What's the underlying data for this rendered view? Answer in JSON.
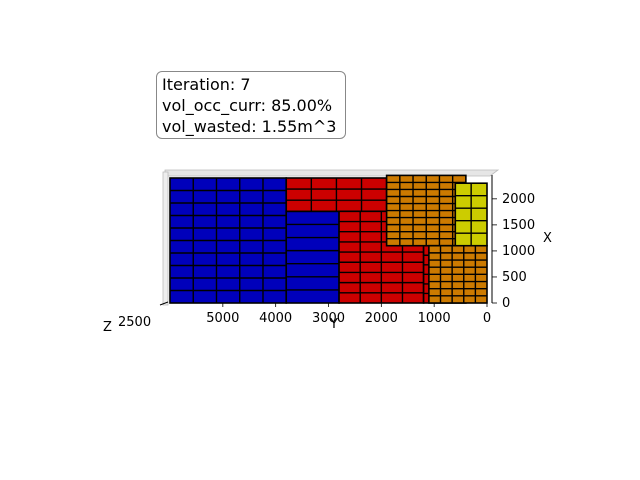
{
  "info": {
    "iteration": "Iteration: 7",
    "vol_occ": "vol_occ_curr: 85.00%",
    "vol_wasted": "vol_wasted: 1.55m^3"
  },
  "chart_data": {
    "type": "3d-box-packing",
    "axes": {
      "y": {
        "label": "Y",
        "ticks": [
          "5000",
          "4000",
          "3000",
          "2000",
          "1000",
          "0"
        ],
        "range": [
          0,
          6000
        ]
      },
      "x": {
        "label": "X",
        "ticks": [
          "0",
          "500",
          "1000",
          "1500",
          "2000"
        ],
        "range": [
          0,
          2400
        ]
      },
      "z": {
        "label": "Z",
        "tick_overlap_text": "2500"
      }
    },
    "blocks": [
      {
        "name": "blue-block",
        "color": "#0000bb",
        "y_range": [
          3800,
          6000
        ],
        "x_range": [
          0,
          2400
        ],
        "cols": 5,
        "rows": 10
      },
      {
        "name": "blue-block-lower",
        "color": "#0000bb",
        "y_range": [
          2800,
          3800
        ],
        "x_range": [
          0,
          1760
        ],
        "cols": 1,
        "rows": 7
      },
      {
        "name": "red-block-top",
        "color": "#cc0000",
        "y_range": [
          1900,
          3800
        ],
        "x_range": [
          1760,
          2400
        ],
        "cols": 4,
        "rows": 3
      },
      {
        "name": "red-block",
        "color": "#cc0000",
        "y_range": [
          1200,
          2800
        ],
        "x_range": [
          0,
          1760
        ],
        "cols": 4,
        "rows": 9
      },
      {
        "name": "red-block-right",
        "color": "#cc0000",
        "y_range": [
          400,
          1200
        ],
        "x_range": [
          0,
          1100
        ],
        "cols": 1,
        "rows": 6
      },
      {
        "name": "orange-block",
        "color": "#cc7a00",
        "y_range": [
          400,
          1900
        ],
        "x_range": [
          1100,
          2450
        ],
        "cols": 6,
        "rows": 10
      },
      {
        "name": "orange-block-lower",
        "color": "#cc7a00",
        "y_range": [
          0,
          1100
        ],
        "x_range": [
          0,
          1100
        ],
        "cols": 5,
        "rows": 8
      },
      {
        "name": "yellow-block",
        "color": "#cccc00",
        "y_range": [
          0,
          600
        ],
        "x_range": [
          1100,
          2300
        ],
        "cols": 2,
        "rows": 5
      }
    ]
  }
}
